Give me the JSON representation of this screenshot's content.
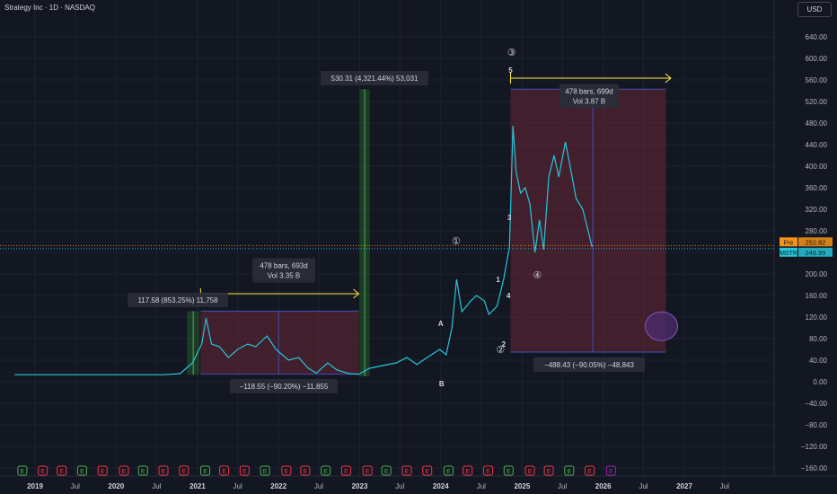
{
  "header": {
    "title": "Strategy Inc · 1D · NASDAQ",
    "currency": "USD"
  },
  "colors": {
    "background": "#131722",
    "price_line": "#26c6da",
    "measure_red": "#7a2a3a",
    "measure_green": "#2e7d32",
    "bar_line": "#3f51b5",
    "arrow_yellow": "#ffeb3b",
    "pre_badge": "#f7931a",
    "mstr_badge": "#26c6da",
    "ellipse": "#4a2a6a"
  },
  "chart_data": {
    "type": "line",
    "title": "Strategy Inc · 1D · NASDAQ",
    "xlabel": "",
    "ylabel": "",
    "ylim": [
      -170,
      660
    ],
    "x_ticks": [
      "2019",
      "Jul",
      "2020",
      "Jul",
      "2021",
      "Jul",
      "2022",
      "Jul",
      "2023",
      "Jul",
      "2024",
      "Jul",
      "2025",
      "Jul",
      "2026",
      "Jul",
      "2027",
      "Jul"
    ],
    "y_ticks": [
      -160,
      -120,
      -80,
      -40,
      0,
      40,
      80,
      120,
      160,
      200,
      240,
      280,
      320,
      360,
      400,
      440,
      480,
      520,
      560,
      600,
      640
    ],
    "series": [
      {
        "name": "MSTR",
        "points": [
          [
            "2018-10-01",
            13
          ],
          [
            "2019-06-01",
            13
          ],
          [
            "2020-01-01",
            13
          ],
          [
            "2020-08-01",
            13
          ],
          [
            "2020-10-15",
            15
          ],
          [
            "2020-12-10",
            35
          ],
          [
            "2021-01-20",
            70
          ],
          [
            "2021-02-09",
            118
          ],
          [
            "2021-03-05",
            70
          ],
          [
            "2021-04-10",
            65
          ],
          [
            "2021-05-20",
            45
          ],
          [
            "2021-07-01",
            60
          ],
          [
            "2021-08-15",
            70
          ],
          [
            "2021-09-20",
            65
          ],
          [
            "2021-11-10",
            85
          ],
          [
            "2021-12-20",
            60
          ],
          [
            "2022-02-15",
            40
          ],
          [
            "2022-04-01",
            45
          ],
          [
            "2022-05-15",
            25
          ],
          [
            "2022-06-20",
            16
          ],
          [
            "2022-08-10",
            35
          ],
          [
            "2022-09-20",
            22
          ],
          [
            "2022-11-15",
            15
          ],
          [
            "2022-12-28",
            14
          ],
          [
            "2023-02-15",
            25
          ],
          [
            "2023-04-15",
            30
          ],
          [
            "2023-06-15",
            35
          ],
          [
            "2023-08-01",
            45
          ],
          [
            "2023-09-15",
            32
          ],
          [
            "2023-11-01",
            45
          ],
          [
            "2023-12-27",
            60
          ],
          [
            "2024-01-25",
            50
          ],
          [
            "2024-02-20",
            100
          ],
          [
            "2024-03-12",
            190
          ],
          [
            "2024-04-05",
            130
          ],
          [
            "2024-05-15",
            150
          ],
          [
            "2024-06-10",
            160
          ],
          [
            "2024-07-15",
            150
          ],
          [
            "2024-08-05",
            125
          ],
          [
            "2024-09-10",
            140
          ],
          [
            "2024-10-10",
            190
          ],
          [
            "2024-11-05",
            250
          ],
          [
            "2024-11-21",
            475
          ],
          [
            "2024-12-05",
            390
          ],
          [
            "2024-12-25",
            350
          ],
          [
            "2025-01-15",
            360
          ],
          [
            "2025-02-05",
            330
          ],
          [
            "2025-02-28",
            240
          ],
          [
            "2025-03-20",
            300
          ],
          [
            "2025-04-08",
            245
          ],
          [
            "2025-05-01",
            380
          ],
          [
            "2025-05-25",
            420
          ],
          [
            "2025-06-15",
            380
          ],
          [
            "2025-07-15",
            445
          ],
          [
            "2025-08-05",
            400
          ],
          [
            "2025-09-01",
            340
          ],
          [
            "2025-10-01",
            320
          ],
          [
            "2025-10-25",
            280
          ],
          [
            "2025-11-12",
            250
          ]
        ]
      }
    ],
    "badges": [
      {
        "label": "Pre",
        "value": "252.82"
      },
      {
        "label": "MSTR",
        "value": "246.99"
      }
    ],
    "annotations": {
      "measure_2021": {
        "text": "117.58 (853.25%) 11,758",
        "from": [
          "2020-11-15",
          13
        ],
        "to": [
          "2021-01-20",
          131
        ]
      },
      "drawdown_2021": {
        "text": "−118.55 (−90.20%) −11,855"
      },
      "range_2021": {
        "line1": "478 bars, 693d",
        "line2": "Vol 3.35 B"
      },
      "measure_2023": {
        "text": "530.31 (4,321.44%) 53,031"
      },
      "range_2025": {
        "line1": "478 bars, 699d",
        "line2": "Vol 3.87 B"
      },
      "drawdown_2025": {
        "text": "−488.43 (−90.05%) −48,843"
      },
      "wave_labels": [
        "A",
        "B",
        "1",
        "2",
        "3",
        "4",
        "5"
      ],
      "circled_labels": [
        "①",
        "②",
        "③",
        "④"
      ]
    },
    "earnings_marker": "E",
    "grid": true,
    "legend": "none"
  }
}
